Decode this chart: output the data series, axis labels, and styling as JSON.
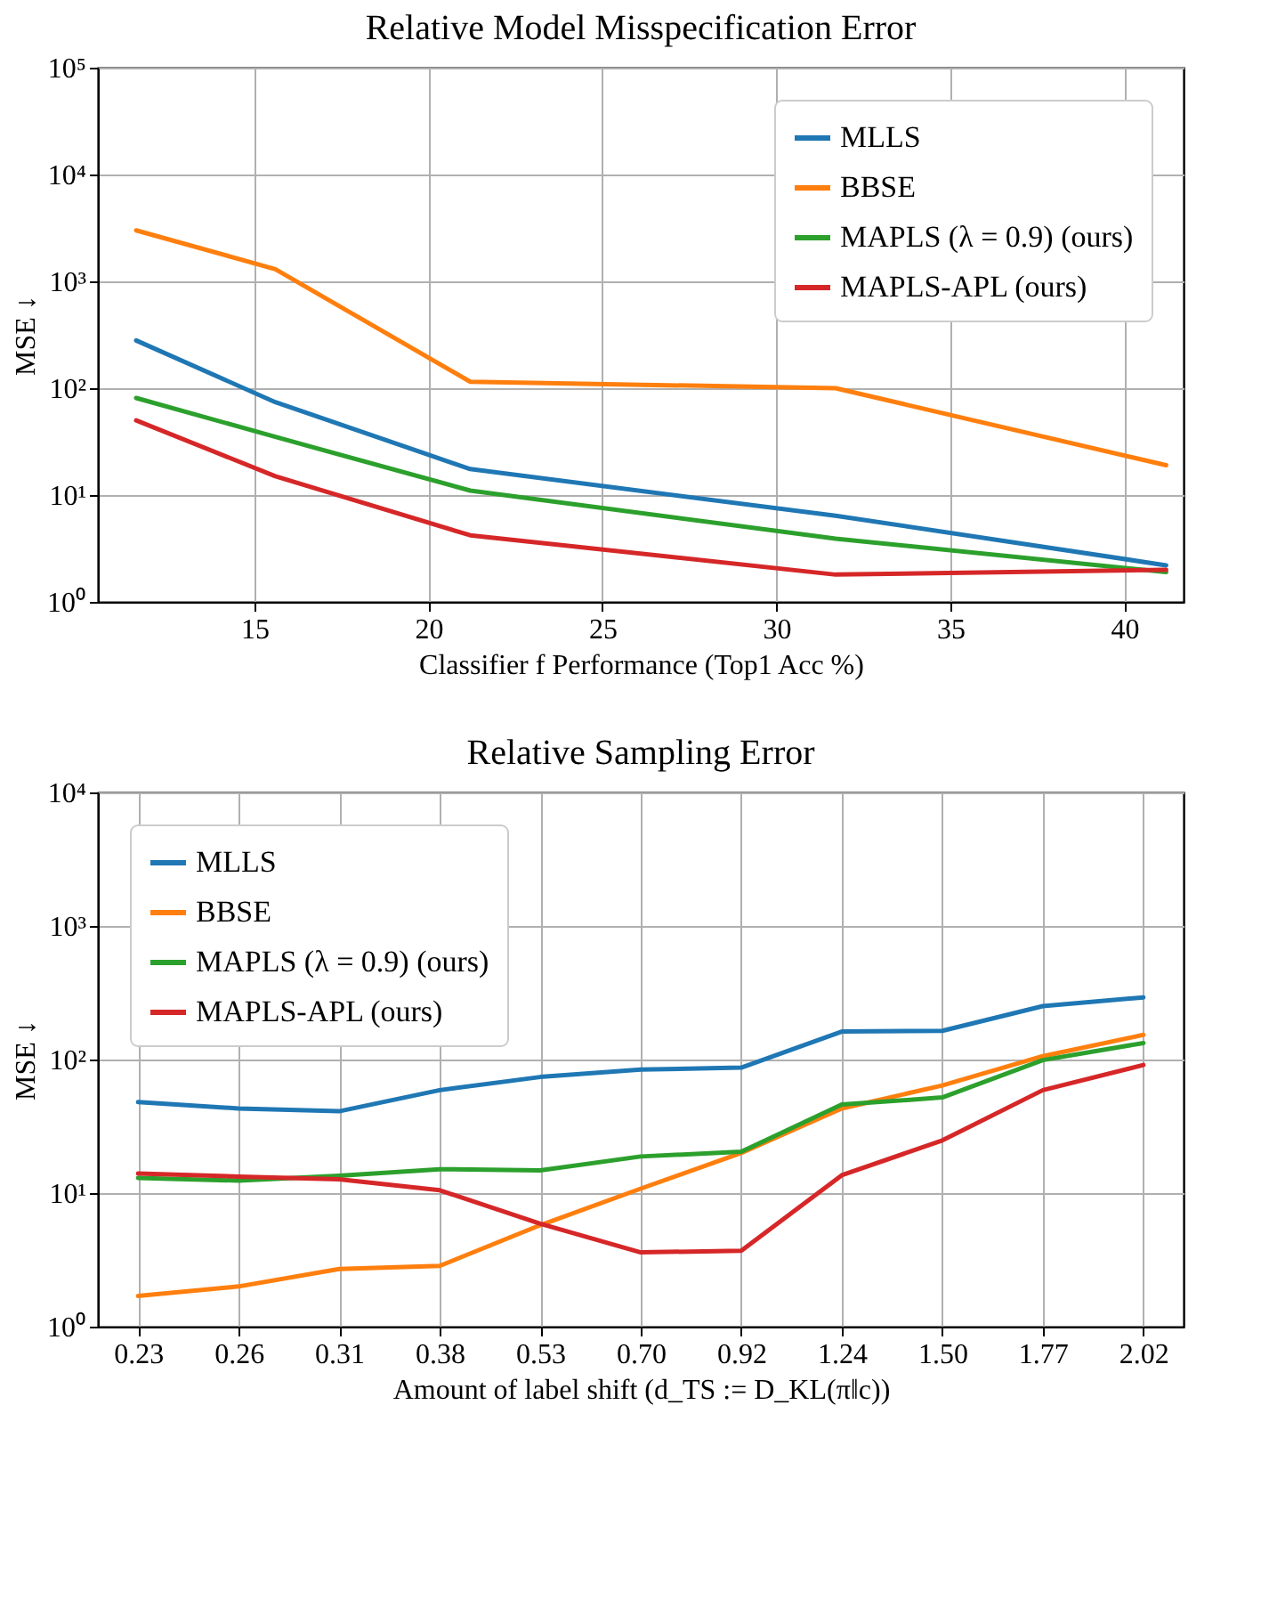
{
  "chart_data": [
    {
      "type": "line",
      "title": "Relative Model Misspecification Error",
      "xlabel": "Classifier f Performance (Top1 Acc %)",
      "ylabel": "MSE ↓",
      "x": [
        11.6,
        15.6,
        21.2,
        31.7,
        41.2
      ],
      "xlim": [
        10.5,
        41.7
      ],
      "xticks": [
        15,
        20,
        25,
        30,
        35,
        40
      ],
      "log": "y",
      "ylim": [
        1,
        100000
      ],
      "yticks": [
        {
          "value": 1,
          "label": "10⁰"
        },
        {
          "value": 10,
          "label": "10¹"
        },
        {
          "value": 100,
          "label": "10²"
        },
        {
          "value": 1000,
          "label": "10³"
        },
        {
          "value": 10000,
          "label": "10⁴"
        },
        {
          "value": 100000,
          "label": "10⁵"
        }
      ],
      "grid": true,
      "legend": "top right",
      "line_style": "solid",
      "series": [
        {
          "name": "MLLS",
          "color": "#1f77b4",
          "values": [
            280,
            74,
            17.5,
            6.4,
            2.2
          ]
        },
        {
          "name": "BBSE",
          "color": "#ff7f0e",
          "values": [
            3000,
            1300,
            115,
            100,
            19
          ]
        },
        {
          "name": "MAPLS (λ = 0.9) (ours)",
          "color": "#2ca02c",
          "values": [
            81,
            35,
            11,
            3.9,
            1.9
          ]
        },
        {
          "name": "MAPLS-APL (ours)",
          "color": "#d62728",
          "values": [
            50,
            15,
            4.2,
            1.8,
            2.0
          ]
        }
      ]
    },
    {
      "type": "line",
      "title": "Relative Sampling Error",
      "xlabel": "Amount of label shift (d_TS := D_KL(π‖c))",
      "ylabel": "MSE ↓",
      "categories": [
        "0.23",
        "0.26",
        "0.31",
        "0.38",
        "0.53",
        "0.70",
        "0.92",
        "1.24",
        "1.50",
        "1.77",
        "2.02"
      ],
      "log": "y",
      "ylim": [
        1,
        10000
      ],
      "yticks": [
        {
          "value": 1,
          "label": "10⁰"
        },
        {
          "value": 10,
          "label": "10¹"
        },
        {
          "value": 100,
          "label": "10²"
        },
        {
          "value": 1000,
          "label": "10³"
        },
        {
          "value": 10000,
          "label": "10⁴"
        }
      ],
      "grid": true,
      "legend": "top left",
      "line_style": "solid",
      "series": [
        {
          "name": "MLLS",
          "color": "#1f77b4",
          "values": [
            48,
            43,
            41,
            59,
            74,
            84,
            87,
            162,
            164,
            251,
            292
          ]
        },
        {
          "name": "BBSE",
          "color": "#ff7f0e",
          "values": [
            1.7,
            2.0,
            2.7,
            2.85,
            5.75,
            10.8,
            20,
            43,
            64,
            106,
            153
          ]
        },
        {
          "name": "MAPLS (λ = 0.9) (ours)",
          "color": "#2ca02c",
          "values": [
            13,
            12.4,
            13.5,
            15.1,
            14.8,
            18.8,
            20.4,
            46,
            52,
            99,
            133
          ]
        },
        {
          "name": "MAPLS-APL (ours)",
          "color": "#d62728",
          "values": [
            14,
            13.3,
            12.7,
            10.5,
            5.9,
            3.6,
            3.7,
            13.6,
            24.8,
            59,
            91
          ]
        }
      ]
    }
  ]
}
